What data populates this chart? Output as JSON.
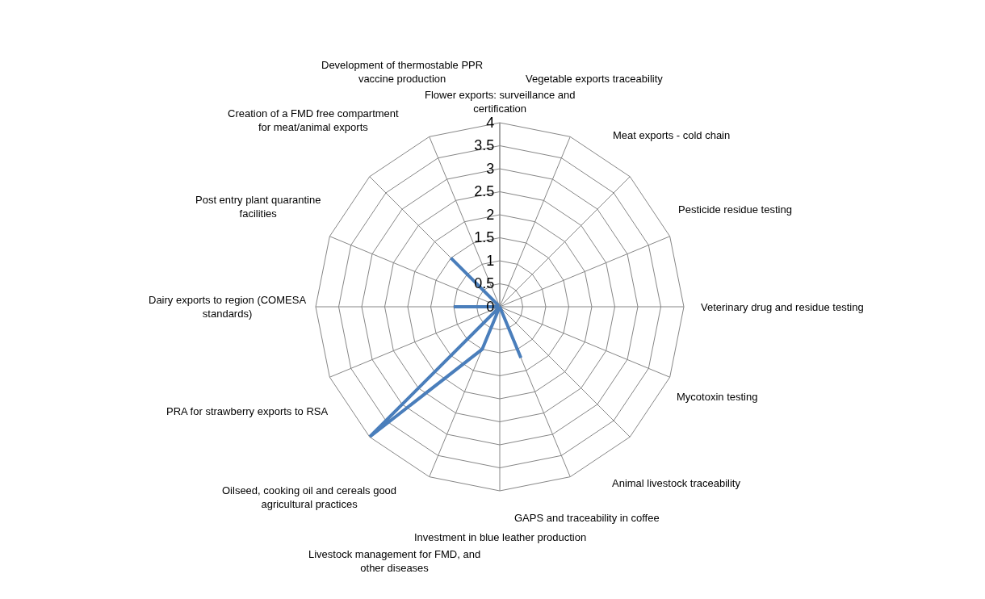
{
  "chart_data": {
    "type": "radar",
    "categories": [
      "Flower exports: surveillance and certification",
      "Vegetable exports traceability",
      "Meat exports - cold chain",
      "Pesticide residue testing",
      "Veterinary drug and residue testing",
      "Mycotoxin testing",
      "Animal livestock traceability",
      "GAPS and traceability in coffee",
      "Investment in blue leather production",
      "Livestock management for FMD, and other diseases",
      "Oilseed, cooking oil and cereals good agricultural practices",
      "PRA for strawberry exports to RSA",
      "Dairy exports to region (COMESA standards)",
      "Post entry plant quarantine facilities",
      "Creation of a FMD free compartment for meat/animal exports",
      "Development of thermostable PPR vaccine production"
    ],
    "series": [
      {
        "color": "#4a7ebb",
        "values": [
          0,
          0,
          0,
          0,
          0,
          0,
          0,
          1.2,
          0,
          1,
          4,
          0,
          1,
          0,
          1.5,
          0
        ]
      }
    ],
    "ylim": [
      0,
      4
    ],
    "yticks": [
      0,
      0.5,
      1,
      1.5,
      2,
      2.5,
      3,
      3.5,
      4
    ],
    "grid": true,
    "marker": "none",
    "line_style": "solid"
  }
}
